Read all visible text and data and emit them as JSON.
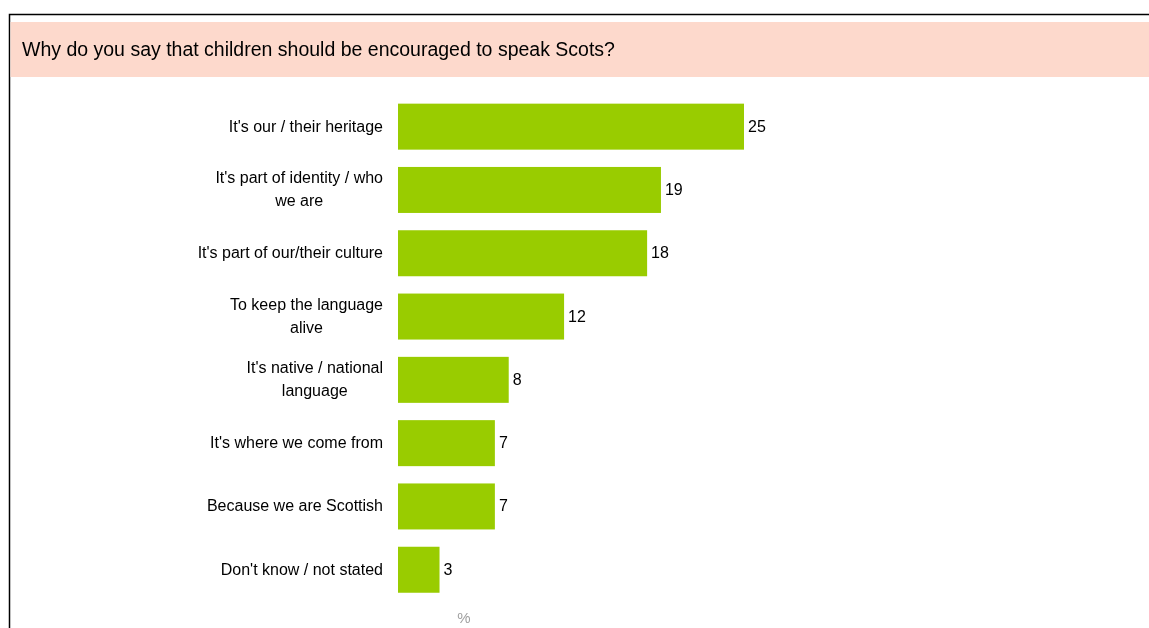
{
  "chart_data": {
    "type": "bar",
    "orientation": "horizontal",
    "title": "Why do you say that children should be encouraged to speak Scots?",
    "xlabel": "%",
    "categories": [
      "It's our / their heritage",
      "It's part of identity / who we are",
      "It's part of our/their culture",
      "To keep the language alive",
      "It's native / national language",
      "It's where we come from",
      "Because we are Scottish",
      "Don't know / not stated"
    ],
    "values": [
      25,
      19,
      18,
      12,
      8,
      7,
      7,
      3
    ],
    "color": "#99cc00",
    "data_labels": true
  }
}
